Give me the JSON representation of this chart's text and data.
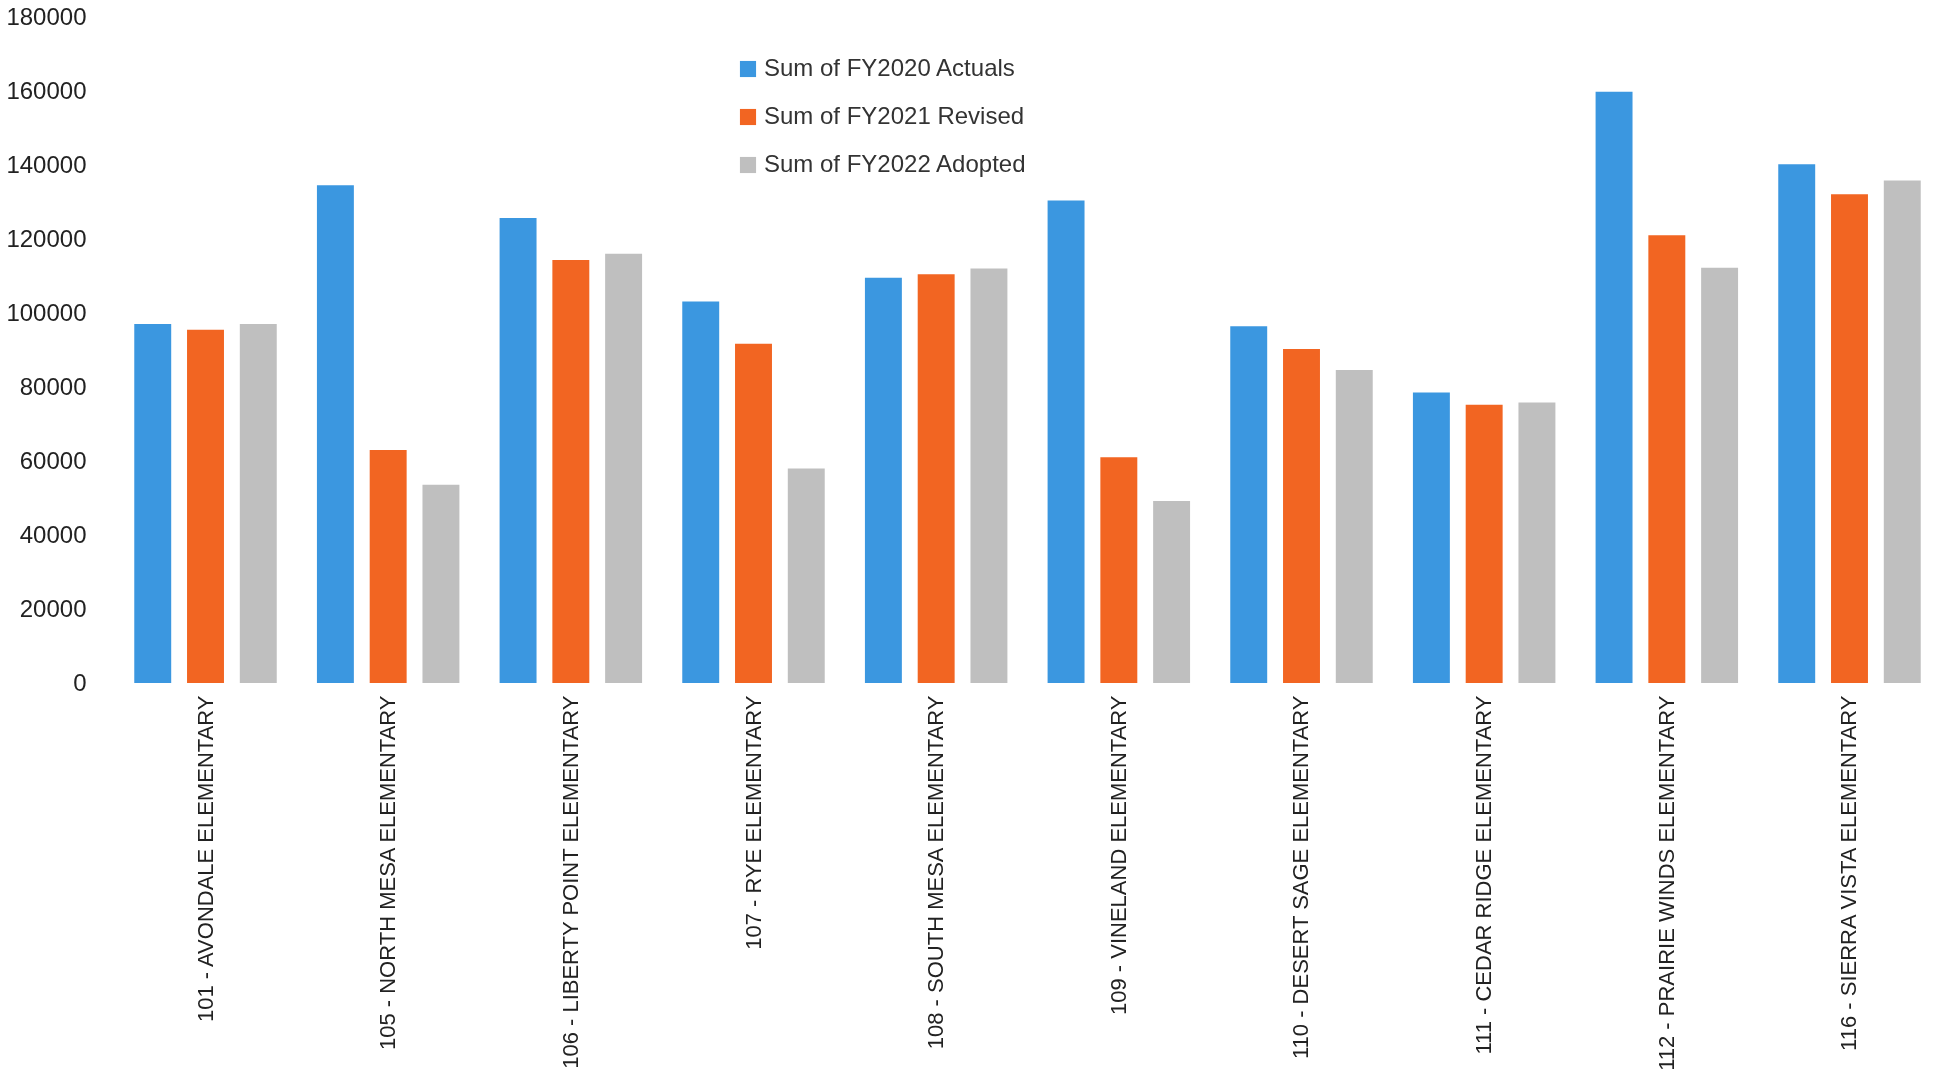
{
  "chart_data": {
    "type": "bar",
    "categories": [
      "101 - AVONDALE ELEMENTARY",
      "105 - NORTH MESA ELEMENTARY",
      "106 - LIBERTY POINT ELEMENTARY",
      "107 - RYE ELEMENTARY",
      "108 - SOUTH MESA ELEMENTARY",
      "109 - VINELAND ELEMENTARY",
      "110 - DESERT SAGE ELEMENTARY",
      "111 - CEDAR RIDGE ELEMENTARY",
      "112 - PRAIRIE WINDS ELEMENTARY",
      "116 - SIERRA VISTA ELEMENTARY"
    ],
    "series": [
      {
        "name": "Sum of FY2020 Actuals",
        "color": "#3b97e0",
        "values": [
          97000,
          134500,
          125700,
          103100,
          109500,
          130400,
          96400,
          78500,
          159800,
          140200
        ]
      },
      {
        "name": "Sum of FY2021 Revised",
        "color": "#f26522",
        "values": [
          95500,
          63000,
          114300,
          91700,
          110500,
          61000,
          90300,
          75200,
          121000,
          132100
        ]
      },
      {
        "name": "Sum of FY2022 Adopted",
        "color": "#bfbfbf",
        "values": [
          97000,
          53600,
          116000,
          58000,
          112000,
          49200,
          84600,
          75800,
          112200,
          135800
        ]
      }
    ],
    "ylim": [
      0,
      180000
    ],
    "yticks": [
      0,
      20000,
      40000,
      60000,
      80000,
      100000,
      120000,
      140000,
      160000,
      180000
    ],
    "grid": false,
    "legend": "top left"
  }
}
